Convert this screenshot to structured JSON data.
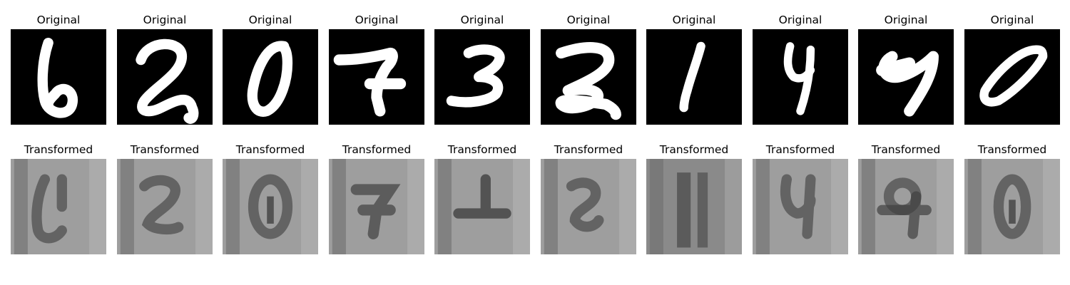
{
  "originals": [
    {
      "title": "Original",
      "digit": "6"
    },
    {
      "title": "Original",
      "digit": "2"
    },
    {
      "title": "Original",
      "digit": "0"
    },
    {
      "title": "Original",
      "digit": "7"
    },
    {
      "title": "Original",
      "digit": "3"
    },
    {
      "title": "Original",
      "digit": "2"
    },
    {
      "title": "Original",
      "digit": "1"
    },
    {
      "title": "Original",
      "digit": "4"
    },
    {
      "title": "Original",
      "digit": "9"
    },
    {
      "title": "Original",
      "digit": "0"
    }
  ],
  "transformed": [
    {
      "title": "Transformed"
    },
    {
      "title": "Transformed"
    },
    {
      "title": "Transformed"
    },
    {
      "title": "Transformed"
    },
    {
      "title": "Transformed"
    },
    {
      "title": "Transformed"
    },
    {
      "title": "Transformed"
    },
    {
      "title": "Transformed"
    },
    {
      "title": "Transformed"
    },
    {
      "title": "Transformed"
    }
  ],
  "colors": {
    "original_background": "#000000",
    "original_stroke": "#ffffff",
    "transformed_background": "#9e9e9e",
    "transformed_shadow": "#3c3c3c"
  }
}
